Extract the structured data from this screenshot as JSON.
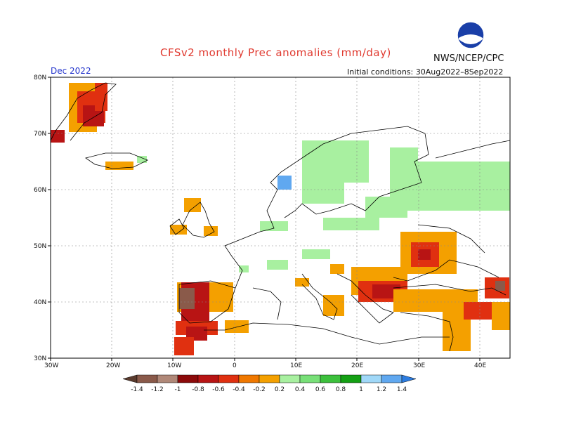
{
  "title": "CFSv2 monthly Prec anomalies (mm/day)",
  "agency": "NWS/NCEP/CPC",
  "logo_text": "NOAA",
  "month": "Dec 2022",
  "initial_conditions": "Initial conditions: 30Aug2022–8Sep2022",
  "axes": {
    "lon_ticks": [
      "30W",
      "20W",
      "10W",
      "0",
      "10E",
      "20E",
      "30E",
      "40E"
    ],
    "lat_ticks": [
      "80N",
      "70N",
      "60N",
      "50N",
      "40N",
      "30N"
    ],
    "extent": {
      "lon": [
        -30,
        45
      ],
      "lat": [
        30,
        80
      ]
    }
  },
  "colorbar": {
    "labels": [
      "-1.4",
      "-1.2",
      "-1",
      "-0.8",
      "-0.6",
      "-0.4",
      "-0.2",
      "0.2",
      "0.4",
      "0.6",
      "0.8",
      "1",
      "1.2",
      "1.4"
    ],
    "colors": [
      "#5a3b2e",
      "#8a5a4a",
      "#b08878",
      "#8c0a0a",
      "#b81414",
      "#e03010",
      "#f07800",
      "#f4a000",
      "#a8f0a0",
      "#78e078",
      "#3cc03c",
      "#14a014",
      "#a0d8f8",
      "#60a8f0",
      "#2c7ce0"
    ]
  },
  "colors": {
    "title": "#e0392f",
    "month": "#2233cc",
    "orange": "#f4a000",
    "dark_orange": "#f07800",
    "red": "#e03010",
    "dark_red": "#b81414",
    "green": "#a8f0a0",
    "blue": "#60a8f0"
  }
}
